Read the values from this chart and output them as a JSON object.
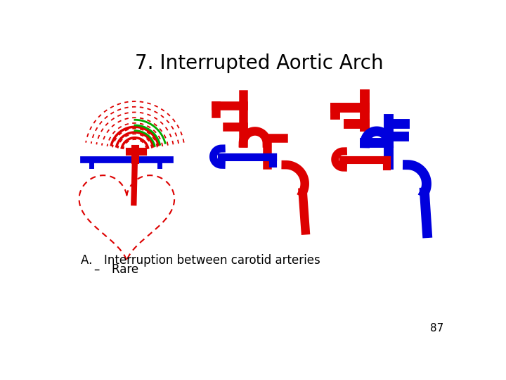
{
  "title": "7. Interrupted Aortic Arch",
  "title_fontsize": 20,
  "text_A": "A. Interruption between carotid arteries",
  "text_bullet": "– Rare",
  "page_num": "87",
  "bg_color": "#ffffff",
  "red": "#dd0000",
  "blue": "#0000dd",
  "green": "#00aa00"
}
